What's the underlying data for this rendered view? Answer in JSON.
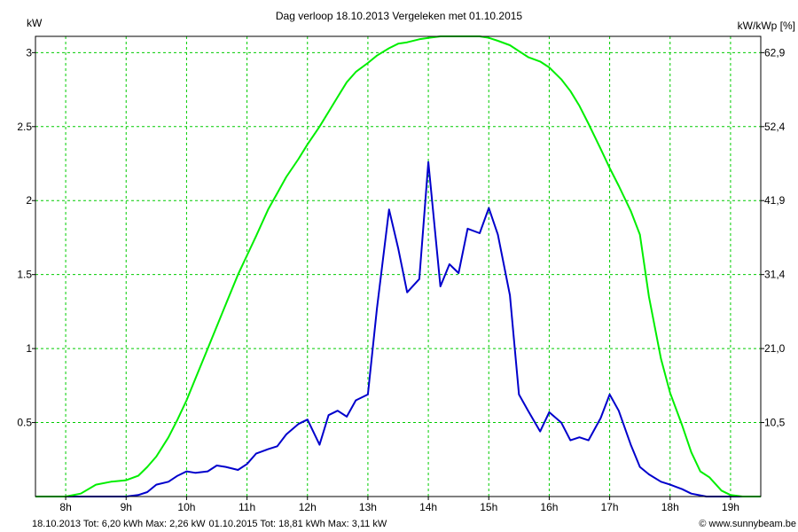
{
  "chart_data": {
    "type": "line",
    "title": "Dag  verloop 18.10.2013   Vergeleken met 01.10.2015",
    "ylabel_left": "kW",
    "ylabel_right": "kW/kWp [%]",
    "x_ticks": [
      "8h",
      "9h",
      "10h",
      "11h",
      "12h",
      "13h",
      "14h",
      "15h",
      "16h",
      "17h",
      "18h",
      "19h"
    ],
    "x_tick_values": [
      8,
      9,
      10,
      11,
      12,
      13,
      14,
      15,
      16,
      17,
      18,
      19
    ],
    "xlim": [
      7.5,
      19.5
    ],
    "ylim": [
      0,
      3.11
    ],
    "y_ticks": [
      "0.5",
      "1",
      "1.5",
      "2",
      "2.5",
      "3"
    ],
    "y_tick_values": [
      0.5,
      1,
      1.5,
      2,
      2.5,
      3
    ],
    "y2_ticks": [
      "10,5",
      "21,0",
      "31,4",
      "41,9",
      "52,4",
      "62,9"
    ],
    "grid": true,
    "colors": {
      "series_2013": "#0000cc",
      "series_2015": "#00ee00",
      "grid": "#00cc00",
      "frame": "#000000"
    },
    "series": [
      {
        "key": "series_2013",
        "x": [
          7.5,
          8.0,
          8.5,
          9.0,
          9.2,
          9.35,
          9.5,
          9.7,
          9.85,
          10.0,
          10.15,
          10.35,
          10.5,
          10.65,
          10.85,
          11.0,
          11.15,
          11.35,
          11.5,
          11.65,
          11.85,
          12.0,
          12.2,
          12.35,
          12.5,
          12.65,
          12.8,
          13.0,
          13.15,
          13.35,
          13.5,
          13.65,
          13.85,
          14.0,
          14.2,
          14.35,
          14.5,
          14.65,
          14.85,
          15.0,
          15.15,
          15.35,
          15.5,
          15.65,
          15.85,
          16.0,
          16.2,
          16.35,
          16.5,
          16.65,
          16.85,
          17.0,
          17.15,
          17.35,
          17.5,
          17.65,
          17.85,
          18.0,
          18.2,
          18.35,
          18.6,
          18.8,
          19.0,
          19.2,
          19.5
        ],
        "y": [
          0,
          0,
          0,
          0,
          0.01,
          0.03,
          0.08,
          0.1,
          0.14,
          0.17,
          0.16,
          0.17,
          0.21,
          0.2,
          0.18,
          0.22,
          0.29,
          0.32,
          0.34,
          0.42,
          0.49,
          0.52,
          0.35,
          0.55,
          0.58,
          0.54,
          0.65,
          0.69,
          1.27,
          1.94,
          1.68,
          1.38,
          1.47,
          2.26,
          1.42,
          1.57,
          1.51,
          1.81,
          1.78,
          1.95,
          1.77,
          1.36,
          0.69,
          0.58,
          0.44,
          0.57,
          0.5,
          0.38,
          0.4,
          0.38,
          0.53,
          0.69,
          0.58,
          0.35,
          0.2,
          0.15,
          0.1,
          0.08,
          0.05,
          0.02,
          0,
          0,
          0,
          0,
          0
        ]
      },
      {
        "key": "series_2015",
        "x": [
          7.5,
          8.0,
          8.25,
          8.5,
          8.75,
          9.0,
          9.2,
          9.35,
          9.5,
          9.7,
          9.85,
          10.0,
          10.15,
          10.35,
          10.5,
          10.65,
          10.85,
          11.0,
          11.15,
          11.35,
          11.5,
          11.65,
          11.85,
          12.0,
          12.2,
          12.35,
          12.5,
          12.65,
          12.8,
          13.0,
          13.15,
          13.35,
          13.5,
          13.65,
          13.85,
          14.0,
          14.2,
          14.35,
          14.5,
          14.65,
          14.85,
          15.0,
          15.15,
          15.35,
          15.5,
          15.65,
          15.85,
          16.0,
          16.2,
          16.35,
          16.5,
          16.65,
          16.85,
          17.0,
          17.15,
          17.35,
          17.5,
          17.65,
          17.85,
          18.0,
          18.2,
          18.35,
          18.5,
          18.65,
          18.85,
          19.0,
          19.2,
          19.5
        ],
        "y": [
          0,
          0,
          0.02,
          0.08,
          0.1,
          0.11,
          0.14,
          0.2,
          0.27,
          0.4,
          0.52,
          0.65,
          0.8,
          1.0,
          1.15,
          1.3,
          1.5,
          1.63,
          1.76,
          1.94,
          2.05,
          2.16,
          2.28,
          2.38,
          2.5,
          2.6,
          2.7,
          2.8,
          2.87,
          2.93,
          2.98,
          3.03,
          3.06,
          3.07,
          3.09,
          3.1,
          3.11,
          3.11,
          3.11,
          3.11,
          3.11,
          3.1,
          3.08,
          3.05,
          3.01,
          2.97,
          2.94,
          2.9,
          2.82,
          2.74,
          2.64,
          2.52,
          2.35,
          2.22,
          2.1,
          1.93,
          1.77,
          1.35,
          0.93,
          0.7,
          0.48,
          0.3,
          0.17,
          0.13,
          0.04,
          0.01,
          0,
          0
        ]
      }
    ]
  },
  "footer": {
    "series_2013_text": "18.10.2013 Tot: 6,20 kWh Max: 2,26 kW",
    "series_2015_text": "01.10.2015 Tot: 18,81 kWh Max: 3,11 kW",
    "credit": "© www.sunnybeam.be"
  }
}
